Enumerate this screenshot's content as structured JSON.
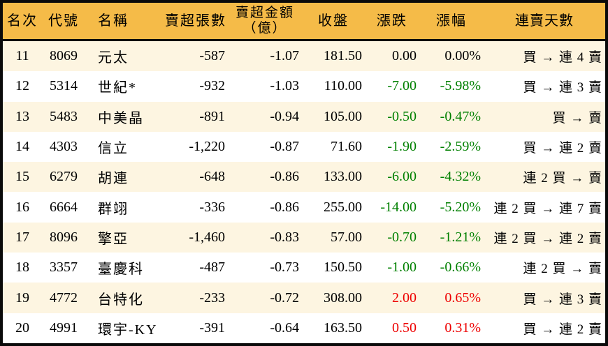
{
  "table": {
    "title": "stock-net-sell-ranking",
    "headers": {
      "rank": "名次",
      "code": "代號",
      "name": "名稱",
      "sell_volume": "賣超張數",
      "sell_amount": "賣超金額\n（億）",
      "close": "收盤",
      "change": "漲跌",
      "change_pct": "漲幅",
      "streak": "連賣天數"
    },
    "rows": [
      {
        "rank": "11",
        "code": "8069",
        "name": "元太",
        "sell_volume": "-587",
        "sell_amount": "-1.07",
        "close": "181.50",
        "change": "0.00",
        "change_pct": "0.00%",
        "streak": "買 → 連 4 賣",
        "trend": "flat"
      },
      {
        "rank": "12",
        "code": "5314",
        "name": "世紀*",
        "sell_volume": "-932",
        "sell_amount": "-1.03",
        "close": "110.00",
        "change": "-7.00",
        "change_pct": "-5.98%",
        "streak": "買 → 連 3 賣",
        "trend": "down"
      },
      {
        "rank": "13",
        "code": "5483",
        "name": "中美晶",
        "sell_volume": "-891",
        "sell_amount": "-0.94",
        "close": "105.00",
        "change": "-0.50",
        "change_pct": "-0.47%",
        "streak": "買 → 賣",
        "trend": "down"
      },
      {
        "rank": "14",
        "code": "4303",
        "name": "信立",
        "sell_volume": "-1,220",
        "sell_amount": "-0.87",
        "close": "71.60",
        "change": "-1.90",
        "change_pct": "-2.59%",
        "streak": "買 → 連 2 賣",
        "trend": "down"
      },
      {
        "rank": "15",
        "code": "6279",
        "name": "胡連",
        "sell_volume": "-648",
        "sell_amount": "-0.86",
        "close": "133.00",
        "change": "-6.00",
        "change_pct": "-4.32%",
        "streak": "連 2 買 → 賣",
        "trend": "down"
      },
      {
        "rank": "16",
        "code": "6664",
        "name": "群翊",
        "sell_volume": "-336",
        "sell_amount": "-0.86",
        "close": "255.00",
        "change": "-14.00",
        "change_pct": "-5.20%",
        "streak": "連 2 買 → 連 7 賣",
        "trend": "down"
      },
      {
        "rank": "17",
        "code": "8096",
        "name": "擎亞",
        "sell_volume": "-1,460",
        "sell_amount": "-0.83",
        "close": "57.00",
        "change": "-0.70",
        "change_pct": "-1.21%",
        "streak": "連 2 買 → 連 2 賣",
        "trend": "down"
      },
      {
        "rank": "18",
        "code": "3357",
        "name": "臺慶科",
        "sell_volume": "-487",
        "sell_amount": "-0.73",
        "close": "150.50",
        "change": "-1.00",
        "change_pct": "-0.66%",
        "streak": "連 2 買 → 賣",
        "trend": "down"
      },
      {
        "rank": "19",
        "code": "4772",
        "name": "台特化",
        "sell_volume": "-233",
        "sell_amount": "-0.72",
        "close": "308.00",
        "change": "2.00",
        "change_pct": "0.65%",
        "streak": "買 → 連 3 賣",
        "trend": "up"
      },
      {
        "rank": "20",
        "code": "4991",
        "name": "環宇-KY",
        "sell_volume": "-391",
        "sell_amount": "-0.64",
        "close": "163.50",
        "change": "0.50",
        "change_pct": "0.31%",
        "streak": "買 → 連 2 賣",
        "trend": "up"
      }
    ]
  },
  "colors": {
    "header_bg": "#F5BB48",
    "row_alt_bg": "#FDF5E1",
    "border": "#0a0a0a",
    "down": "#008000",
    "up": "#EE0000",
    "flat": "#000000"
  }
}
